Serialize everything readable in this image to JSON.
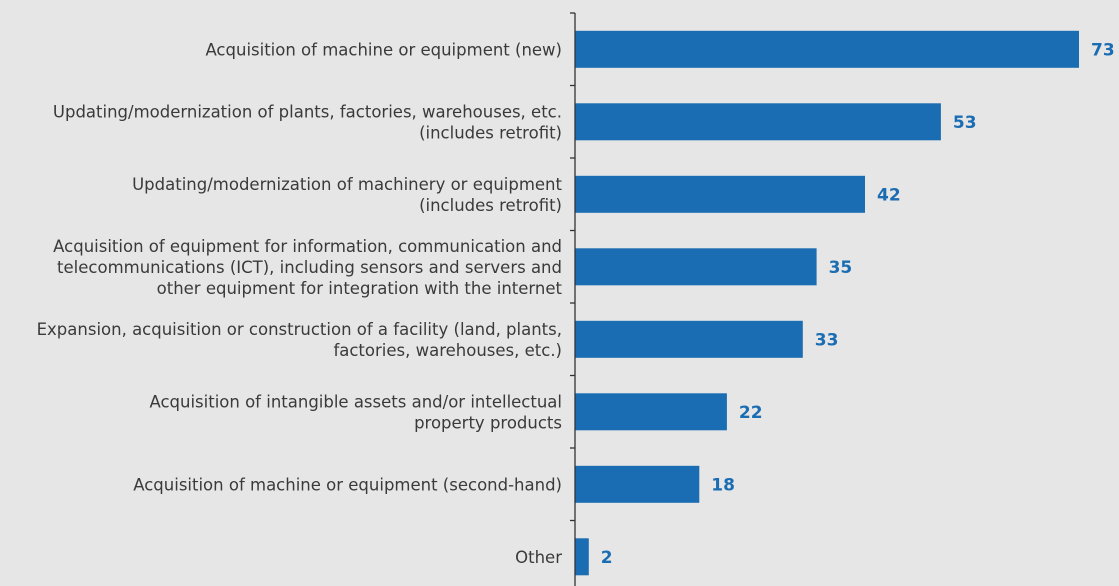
{
  "chart_data": {
    "type": "bar",
    "orientation": "horizontal",
    "categories": [
      [
        "Acquisition of machine or equipment (new)"
      ],
      [
        "Updating/modernization of plants, factories, warehouses, etc.",
        "(includes retrofit)"
      ],
      [
        "Updating/modernization of machinery or equipment",
        "(includes retrofit)"
      ],
      [
        "Acquisition of equipment for information, communication and",
        "telecommunications (ICT), including sensors and servers and",
        "other equipment for integration with the internet"
      ],
      [
        "Expansion, acquisition or construction of a facility (land, plants,",
        "factories, warehouses, etc.)"
      ],
      [
        "Acquisition of intangible assets and/or intellectual",
        "property products"
      ],
      [
        "Acquisition of machine or equipment (second-hand)"
      ],
      [
        "Other"
      ]
    ],
    "values": [
      73,
      53,
      42,
      35,
      33,
      22,
      18,
      2
    ],
    "xlim": [
      0,
      75
    ],
    "grid": false,
    "bar_color": "#1a6db3",
    "value_label_color": "#1a6db3",
    "background": "#e6e6e6"
  }
}
